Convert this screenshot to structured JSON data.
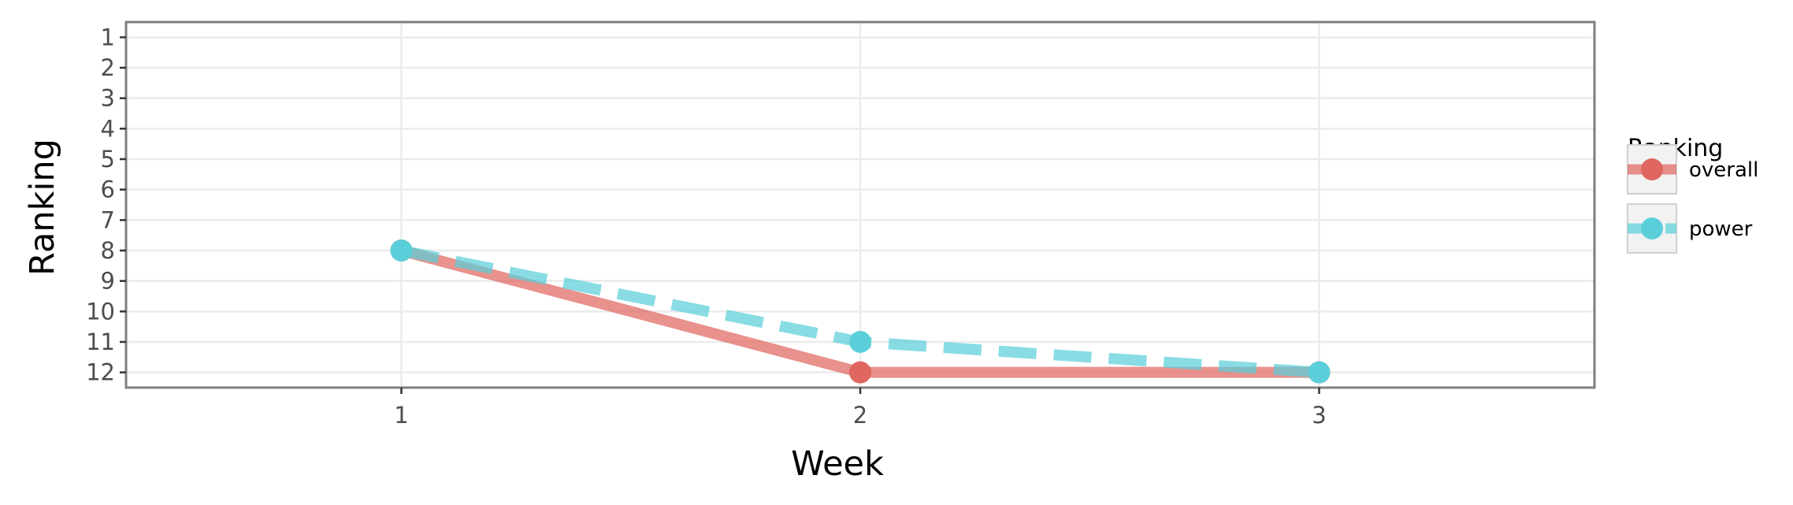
{
  "chart_data": {
    "type": "line",
    "title": "",
    "xlabel": "Week",
    "ylabel": "Ranking",
    "x": [
      1,
      2,
      3
    ],
    "x_ticks": [
      "1",
      "2",
      "3"
    ],
    "xlim": [
      0.4,
      3.6
    ],
    "y_ticks": [
      "1",
      "2",
      "3",
      "4",
      "5",
      "6",
      "7",
      "8",
      "9",
      "10",
      "11",
      "12"
    ],
    "ylim": [
      12.5,
      0.5
    ],
    "y_reversed": true,
    "grid": true,
    "legend": {
      "title": "Ranking",
      "position": "right"
    },
    "series": [
      {
        "name": "overall",
        "values": [
          8,
          12,
          12
        ],
        "color": "#e06660",
        "line_style": "solid"
      },
      {
        "name": "power",
        "values": [
          8,
          11,
          12
        ],
        "color": "#5bcfd9",
        "line_style": "dashed"
      }
    ]
  }
}
